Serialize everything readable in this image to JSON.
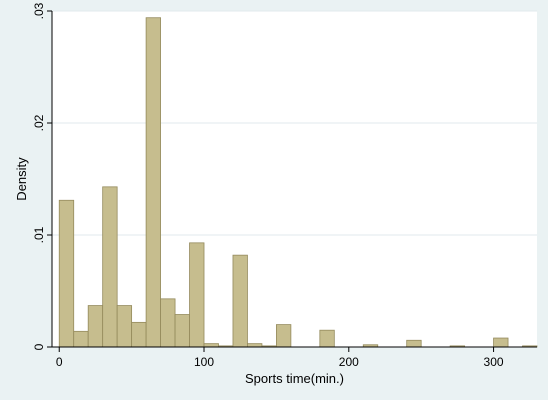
{
  "chart_data": {
    "type": "bar",
    "title": "",
    "xlabel": "Sports time(min.)",
    "ylabel": "Density",
    "xlim": [
      -5,
      330
    ],
    "ylim": [
      0,
      0.03
    ],
    "x_ticks": [
      0,
      100,
      200,
      300
    ],
    "x_tick_labels": [
      "0",
      "100",
      "200",
      "300"
    ],
    "y_ticks": [
      0,
      0.01,
      0.02,
      0.03
    ],
    "y_tick_labels": [
      "0",
      ".01",
      ".02",
      ".03"
    ],
    "grid": true,
    "bin_width": 10,
    "bins": [
      {
        "start": 0,
        "end": 10,
        "density": 0.0131
      },
      {
        "start": 10,
        "end": 20,
        "density": 0.0014
      },
      {
        "start": 20,
        "end": 30,
        "density": 0.0037
      },
      {
        "start": 30,
        "end": 40,
        "density": 0.0143
      },
      {
        "start": 40,
        "end": 50,
        "density": 0.0037
      },
      {
        "start": 50,
        "end": 60,
        "density": 0.0022
      },
      {
        "start": 60,
        "end": 70,
        "density": 0.0294
      },
      {
        "start": 70,
        "end": 80,
        "density": 0.0043
      },
      {
        "start": 80,
        "end": 90,
        "density": 0.0029
      },
      {
        "start": 90,
        "end": 100,
        "density": 0.0093
      },
      {
        "start": 100,
        "end": 110,
        "density": 0.0003
      },
      {
        "start": 110,
        "end": 120,
        "density": 0.0001
      },
      {
        "start": 120,
        "end": 130,
        "density": 0.0082
      },
      {
        "start": 130,
        "end": 140,
        "density": 0.0003
      },
      {
        "start": 140,
        "end": 150,
        "density": 0.0001
      },
      {
        "start": 150,
        "end": 160,
        "density": 0.002
      },
      {
        "start": 160,
        "end": 170,
        "density": 0.0
      },
      {
        "start": 170,
        "end": 180,
        "density": 0.0
      },
      {
        "start": 180,
        "end": 190,
        "density": 0.0015
      },
      {
        "start": 190,
        "end": 200,
        "density": 0.0
      },
      {
        "start": 200,
        "end": 210,
        "density": 0.0
      },
      {
        "start": 210,
        "end": 220,
        "density": 0.0002
      },
      {
        "start": 220,
        "end": 230,
        "density": 0.0
      },
      {
        "start": 230,
        "end": 240,
        "density": 0.0
      },
      {
        "start": 240,
        "end": 250,
        "density": 0.0006
      },
      {
        "start": 250,
        "end": 260,
        "density": 0.0
      },
      {
        "start": 260,
        "end": 270,
        "density": 0.0
      },
      {
        "start": 270,
        "end": 280,
        "density": 0.0001
      },
      {
        "start": 280,
        "end": 290,
        "density": 0.0
      },
      {
        "start": 290,
        "end": 300,
        "density": 0.0
      },
      {
        "start": 300,
        "end": 310,
        "density": 0.0008
      },
      {
        "start": 310,
        "end": 320,
        "density": 0.0
      },
      {
        "start": 320,
        "end": 330,
        "density": 0.0001
      }
    ],
    "colors": {
      "outer_background": "#eaf2f3",
      "plot_background": "#ffffff",
      "bar_fill": "#c6bd8e",
      "bar_stroke": "#948a5c",
      "grid": "#e2eaec",
      "axis": "#000000"
    }
  }
}
